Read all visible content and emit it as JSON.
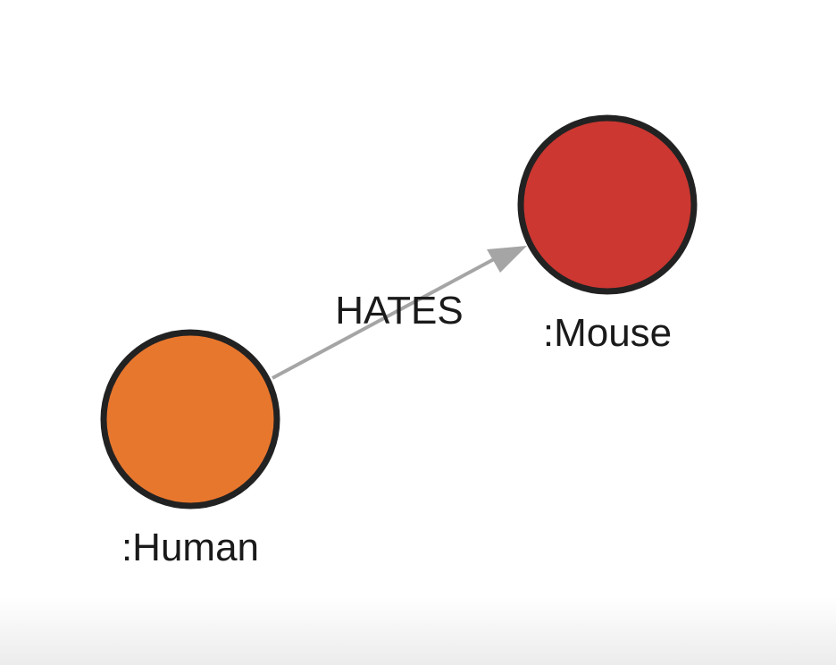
{
  "graph": {
    "nodes": {
      "human": {
        "label": ":Human",
        "color": "#e8772e",
        "stroke": "#222222"
      },
      "mouse": {
        "label": ":Mouse",
        "color": "#cc3731",
        "stroke": "#222222"
      }
    },
    "relationship": {
      "type": "HATES",
      "from": "human",
      "to": "mouse",
      "color": "#a5a5a5"
    }
  }
}
